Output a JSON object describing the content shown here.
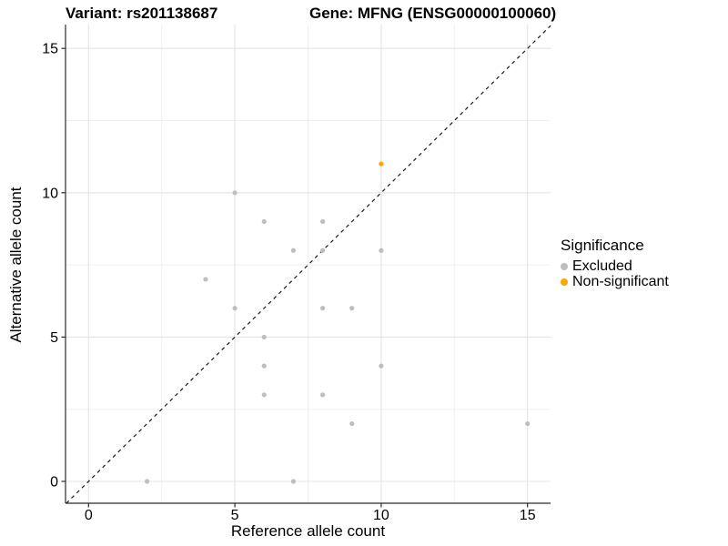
{
  "titles": {
    "variant": "Variant: rs201138687",
    "gene": "Gene: MFNG (ENSG00000100060)"
  },
  "chart_data": {
    "type": "scatter",
    "xlabel": "Reference allele count",
    "ylabel": "Alternative allele count",
    "xlim": [
      -0.79,
      15.79
    ],
    "ylim": [
      -0.76,
      15.83
    ],
    "x_ticks": [
      0,
      5,
      10,
      15
    ],
    "y_ticks": [
      0,
      5,
      10,
      15
    ],
    "x_minor_ticks": [
      2.5,
      7.5,
      12.5
    ],
    "y_minor_ticks": [
      2.5,
      7.5,
      12.5
    ],
    "grid": true,
    "reference_line": {
      "slope": 1,
      "intercept": 0,
      "style": "dashed",
      "color": "#1a1a1a"
    },
    "series": [
      {
        "name": "Excluded",
        "color": "#BEBEBE",
        "points": [
          [
            2,
            0
          ],
          [
            4,
            7
          ],
          [
            5,
            6
          ],
          [
            5,
            10
          ],
          [
            6,
            3
          ],
          [
            6,
            4
          ],
          [
            6,
            5
          ],
          [
            6,
            9
          ],
          [
            7,
            0
          ],
          [
            7,
            8
          ],
          [
            8,
            3
          ],
          [
            8,
            6
          ],
          [
            8,
            8
          ],
          [
            8,
            9
          ],
          [
            9,
            2
          ],
          [
            9,
            6
          ],
          [
            10,
            4
          ],
          [
            10,
            8
          ],
          [
            15,
            2
          ]
        ]
      },
      {
        "name": "Non-significant",
        "color": "#FFA500",
        "points": [
          [
            10,
            11
          ]
        ]
      }
    ],
    "legend_position": "right"
  },
  "legend": {
    "title": "Significance",
    "items": [
      {
        "label": "Excluded",
        "color": "#BEBEBE"
      },
      {
        "label": "Non-significant",
        "color": "#FFA500"
      }
    ]
  },
  "colors": {
    "background": "#ffffff",
    "grid_major": "#E4E4E4",
    "grid_minor": "#F0F0F0",
    "axis": "#2b2b2b",
    "text": "#000000"
  }
}
